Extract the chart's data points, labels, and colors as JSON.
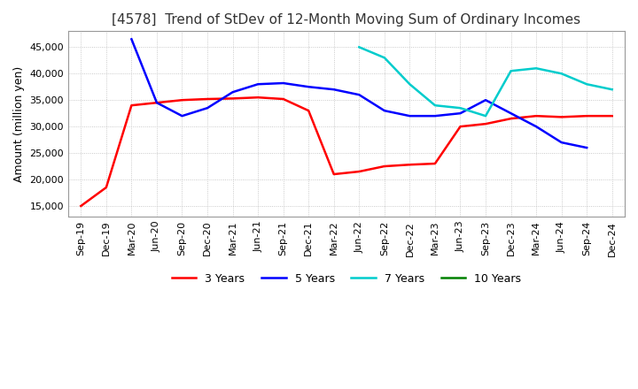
{
  "title": "[4578]  Trend of StDev of 12-Month Moving Sum of Ordinary Incomes",
  "ylabel": "Amount (million yen)",
  "ylim": [
    13000,
    48000
  ],
  "yticks": [
    15000,
    20000,
    25000,
    30000,
    35000,
    40000,
    45000
  ],
  "legend_labels": [
    "3 Years",
    "5 Years",
    "7 Years",
    "10 Years"
  ],
  "legend_colors": [
    "#ff0000",
    "#0000ff",
    "#00cccc",
    "#008000"
  ],
  "x_labels": [
    "Sep-19",
    "Dec-19",
    "Mar-20",
    "Jun-20",
    "Sep-20",
    "Dec-20",
    "Mar-21",
    "Jun-21",
    "Sep-21",
    "Dec-21",
    "Mar-22",
    "Jun-22",
    "Sep-22",
    "Dec-22",
    "Mar-23",
    "Jun-23",
    "Sep-23",
    "Dec-23",
    "Mar-24",
    "Jun-24",
    "Sep-24",
    "Dec-24"
  ],
  "series_3y": [
    15000,
    18500,
    34000,
    34500,
    35000,
    35200,
    35300,
    35500,
    35200,
    33000,
    21000,
    21500,
    22500,
    22800,
    23000,
    30000,
    30500,
    31500,
    32000,
    31800,
    32000,
    32000
  ],
  "series_5y": [
    null,
    null,
    46500,
    34500,
    32000,
    33500,
    36500,
    38000,
    38200,
    37500,
    37000,
    36000,
    33000,
    32000,
    32000,
    32500,
    35000,
    32500,
    30000,
    27000,
    26000,
    null
  ],
  "series_7y": [
    null,
    null,
    null,
    null,
    null,
    null,
    null,
    null,
    null,
    null,
    null,
    45000,
    43000,
    38000,
    34000,
    33500,
    32000,
    40500,
    41000,
    40000,
    38000,
    37000
  ],
  "series_10y": [
    null,
    null,
    null,
    null,
    null,
    null,
    null,
    null,
    null,
    null,
    null,
    null,
    null,
    null,
    null,
    null,
    null,
    null,
    null,
    null,
    null,
    null
  ],
  "background_color": "#ffffff",
  "grid_color": "#bbbbbb",
  "title_fontsize": 11,
  "label_fontsize": 9,
  "tick_fontsize": 8
}
